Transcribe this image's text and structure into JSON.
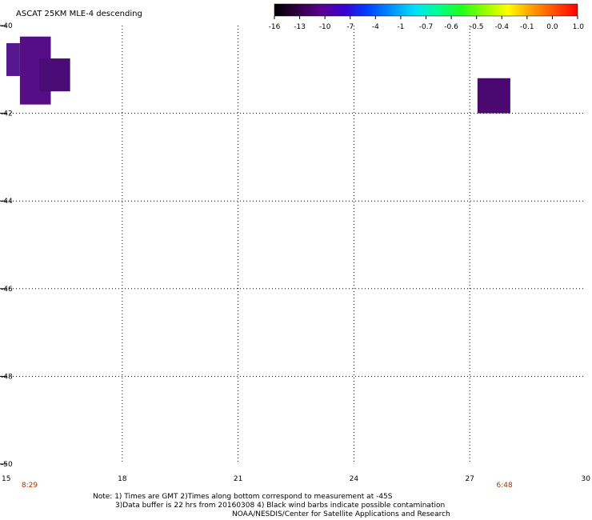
{
  "title": "ASCAT 25KM MLE-4 descending",
  "notes": {
    "line1": "Note: 1) Times are GMT 2)Times along bottom correspond to measurement at -45S",
    "line2": "3)Data buffer is 22 hrs from 20160308 4) Black wind barbs indicate possible contamination",
    "line3": "NOAA/NESDIS/Center for Satellite Applications and Research"
  },
  "colorbar": {
    "labels": [
      "-16",
      "-13",
      "-10",
      "-7",
      "-4",
      "-1",
      "-0.7",
      "-0.6",
      "-0.5",
      "-0.4",
      "-0.1",
      "0.0",
      "1.0"
    ],
    "colors": [
      "#000000",
      "#300040",
      "#5a0090",
      "#3a00d0",
      "#0040ff",
      "#0090ff",
      "#00e0ff",
      "#00ff90",
      "#20ff20",
      "#90ff00",
      "#ffff00",
      "#ffa000",
      "#ff5000",
      "#ff0000"
    ]
  },
  "chart_data": {
    "type": "heatmap",
    "title": "ASCAT 25KM MLE-4 descending",
    "xlim": [
      15,
      30
    ],
    "ylim": [
      -50,
      -40
    ],
    "x_ticks": [
      "15",
      "18",
      "21",
      "24",
      "27",
      "30"
    ],
    "y_ticks": [
      "-40",
      "-42",
      "-44",
      "-46",
      "-48",
      "-50"
    ],
    "time_labels": [
      {
        "x": 15.6,
        "text": "8:29"
      },
      {
        "x": 27.9,
        "text": "6:48"
      }
    ],
    "cells": [
      {
        "x0": 15.0,
        "x1": 15.35,
        "y0": -41.15,
        "y1": -40.4,
        "color": "#55188e"
      },
      {
        "x0": 15.35,
        "x1": 16.15,
        "y0": -41.8,
        "y1": -40.25,
        "color": "#550e86"
      },
      {
        "x0": 15.85,
        "x1": 16.65,
        "y0": -41.5,
        "y1": -40.75,
        "color": "#4b0b76"
      },
      {
        "x0": 27.2,
        "x1": 28.05,
        "y0": -42.0,
        "y1": -41.2,
        "color": "#4a0870"
      }
    ]
  }
}
